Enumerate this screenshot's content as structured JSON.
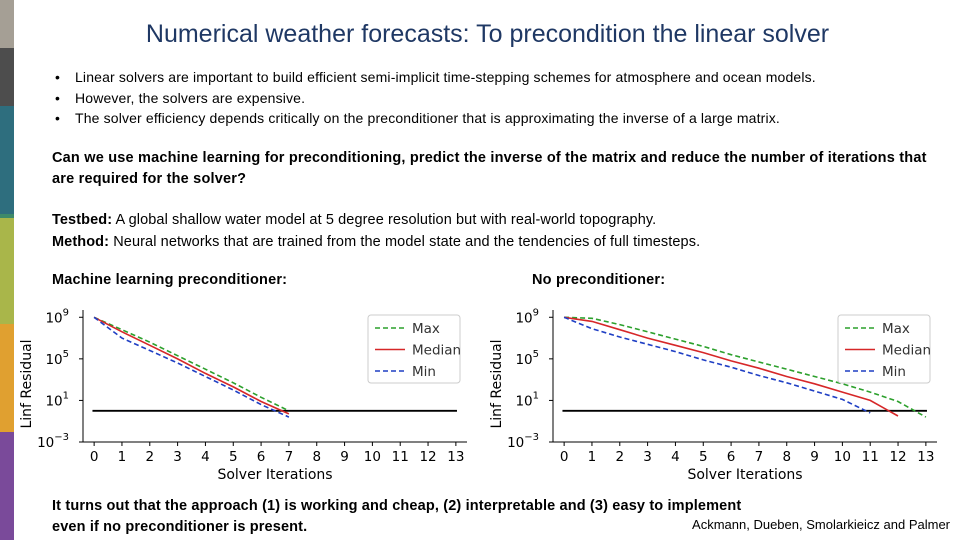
{
  "title": "Numerical weather forecasts: To precondition the linear solver",
  "bullets": [
    "Linear solvers are important to build efficient semi-implicit time-stepping schemes for atmosphere and ocean models.",
    "However, the solvers are expensive.",
    "The solver efficiency depends critically on the preconditioner that is approximating the inverse of a large matrix."
  ],
  "question": "Can we use machine learning for preconditioning, predict the inverse of the matrix and reduce the number of iterations that are required for the solver?",
  "testbed": {
    "label": "Testbed:",
    "text": " A global shallow water model at 5 degree resolution but with real-world topography."
  },
  "method": {
    "label": "Method:",
    "text": " Neural networks that are trained from the model state and the tendencies of full timesteps."
  },
  "conclusion": {
    "line1": "It turns out that the approach (1) is working and cheap, (2) interpretable and (3) easy to implement",
    "line2": "even if no preconditioner is present."
  },
  "authors": "Ackmann, Dueben, Smolarkieicz and Palmer",
  "colors": {
    "title": "#1f3864",
    "max": "#2ca02c",
    "median": "#d62728",
    "min": "#1f3fc4",
    "threshold": "#000000",
    "sidebar": [
      "#a59f95",
      "#4d4d4d",
      "#2e6e7e",
      "#3d8a6a",
      "#a9b64a",
      "#e0a030",
      "#7a4a9a"
    ]
  },
  "chart_data": [
    {
      "type": "line",
      "heading": "Machine learning preconditioner:",
      "xlabel": "Solver Iterations",
      "ylabel": "Linf Residual",
      "yscale": "log",
      "xlim": [
        -0.4,
        13.4
      ],
      "ylim_exp": [
        -3,
        9.7
      ],
      "xticks": [
        "0",
        "1",
        "2",
        "3",
        "4",
        "5",
        "6",
        "7",
        "8",
        "9",
        "10",
        "11",
        "12",
        "13"
      ],
      "yticks": [
        {
          "base": "10",
          "exp": "9",
          "value": 9
        },
        {
          "base": "10",
          "exp": "5",
          "value": 5
        },
        {
          "base": "10",
          "exp": "1",
          "value": 1
        },
        {
          "base": "10",
          "exp": "−3",
          "value": -3
        }
      ],
      "threshold_exp": 0,
      "legend": {
        "position": "top-right",
        "entries": [
          "Max",
          "Median",
          "Min"
        ]
      },
      "series": [
        {
          "name": "Max",
          "style": "dashed",
          "x": [
            0,
            1,
            2,
            3,
            4,
            5,
            6,
            7
          ],
          "y_exp": [
            9.0,
            7.8,
            6.6,
            5.3,
            4.0,
            2.7,
            1.3,
            0.0
          ]
        },
        {
          "name": "Median",
          "style": "solid",
          "x": [
            0,
            1,
            2,
            3,
            4,
            5,
            6,
            7
          ],
          "y_exp": [
            9.0,
            7.6,
            6.3,
            5.0,
            3.6,
            2.3,
            0.9,
            -0.3
          ]
        },
        {
          "name": "Min",
          "style": "dashed",
          "x": [
            0,
            1,
            2,
            3,
            4,
            5,
            6,
            7
          ],
          "y_exp": [
            9.0,
            7.0,
            5.8,
            4.6,
            3.3,
            2.0,
            0.6,
            -0.6
          ]
        }
      ]
    },
    {
      "type": "line",
      "heading": "No preconditioner:",
      "xlabel": "Solver Iterations",
      "ylabel": "Linf Residual",
      "yscale": "log",
      "xlim": [
        -0.4,
        13.4
      ],
      "ylim_exp": [
        -3,
        9.7
      ],
      "xticks": [
        "0",
        "1",
        "2",
        "3",
        "4",
        "5",
        "6",
        "7",
        "8",
        "9",
        "10",
        "11",
        "12",
        "13"
      ],
      "yticks": [
        {
          "base": "10",
          "exp": "9",
          "value": 9
        },
        {
          "base": "10",
          "exp": "5",
          "value": 5
        },
        {
          "base": "10",
          "exp": "1",
          "value": 1
        },
        {
          "base": "10",
          "exp": "−3",
          "value": -3
        }
      ],
      "threshold_exp": 0,
      "legend": {
        "position": "top-right",
        "entries": [
          "Max",
          "Median",
          "Min"
        ]
      },
      "series": [
        {
          "name": "Max",
          "style": "dashed",
          "x": [
            0,
            1,
            2,
            3,
            4,
            5,
            6,
            7,
            8,
            9,
            10,
            11,
            12,
            13
          ],
          "y_exp": [
            9.0,
            8.9,
            8.3,
            7.6,
            6.9,
            6.2,
            5.4,
            4.7,
            4.0,
            3.3,
            2.6,
            1.8,
            0.9,
            -0.6
          ]
        },
        {
          "name": "Median",
          "style": "solid",
          "x": [
            0,
            1,
            2,
            3,
            4,
            5,
            6,
            7,
            8,
            9,
            10,
            11,
            12
          ],
          "y_exp": [
            9.0,
            8.6,
            7.8,
            7.0,
            6.3,
            5.6,
            4.8,
            4.1,
            3.3,
            2.6,
            1.8,
            1.0,
            -0.5
          ]
        },
        {
          "name": "Min",
          "style": "dashed",
          "x": [
            0,
            1,
            2,
            3,
            4,
            5,
            6,
            7,
            8,
            9,
            10,
            11
          ],
          "y_exp": [
            9.0,
            7.9,
            7.1,
            6.4,
            5.7,
            4.9,
            4.2,
            3.4,
            2.7,
            1.9,
            1.1,
            -0.2
          ]
        }
      ]
    }
  ]
}
